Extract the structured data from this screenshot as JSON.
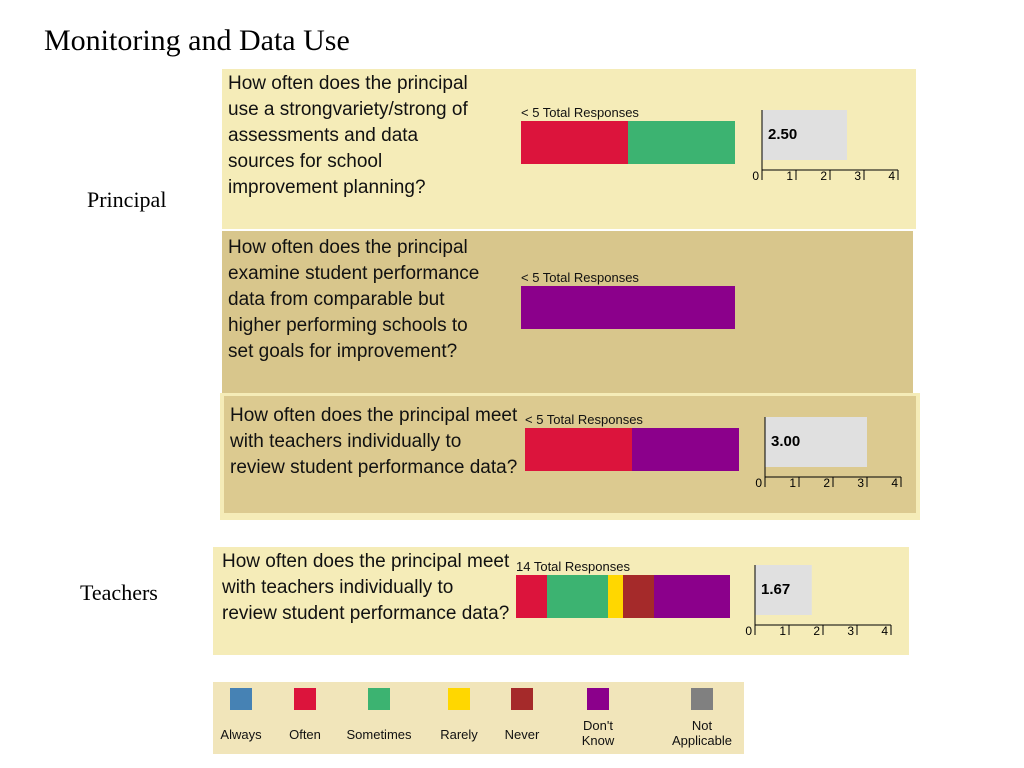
{
  "page": {
    "title": "Monitoring and Data Use"
  },
  "groups": {
    "principal": "Principal",
    "teachers": "Teachers"
  },
  "colors": {
    "Always": "#4682b4",
    "Often": "#dc143c",
    "Sometimes": "#3cb371",
    "Rarely": "#ffd700",
    "Never": "#a52a2a",
    "Don't Know": "#8b008b",
    "Not Applicable": "#808080"
  },
  "chart_data": [
    {
      "type": "bar",
      "group": "Principal",
      "question": "How often does the principal use a strongvariety/strong of assessments and data sources for school improvement planning?",
      "responses_label": "< 5 Total Responses",
      "series": [
        {
          "name": "Often",
          "value": 50
        },
        {
          "name": "Sometimes",
          "value": 50
        }
      ],
      "mean": 2.5,
      "mean_label": "2.50",
      "xlim": [
        0,
        4
      ],
      "ticks": [
        "0",
        "1",
        "2",
        "3",
        "4"
      ]
    },
    {
      "type": "bar",
      "group": "Principal",
      "question": "How often does the principal examine student performance data from comparable but higher performing schools to set goals for improvement?",
      "responses_label": "< 5 Total Responses",
      "series": [
        {
          "name": "Don't Know",
          "value": 100
        }
      ]
    },
    {
      "type": "bar",
      "group": "Principal",
      "question": "How often does the principal meet with teachers individually to review student performance data?",
      "responses_label": "< 5 Total Responses",
      "series": [
        {
          "name": "Often",
          "value": 50
        },
        {
          "name": "Don't Know",
          "value": 50
        }
      ],
      "mean": 3.0,
      "mean_label": "3.00",
      "xlim": [
        0,
        4
      ],
      "ticks": [
        "0",
        "1",
        "2",
        "3",
        "4"
      ]
    },
    {
      "type": "bar",
      "group": "Teachers",
      "question": "How often does the principal meet with teachers individually to review student performance data?",
      "responses_label": "14 Total Responses",
      "series": [
        {
          "name": "Often",
          "value": 14.3
        },
        {
          "name": "Sometimes",
          "value": 28.6
        },
        {
          "name": "Rarely",
          "value": 7.1
        },
        {
          "name": "Never",
          "value": 14.3
        },
        {
          "name": "Don't Know",
          "value": 35.7
        }
      ],
      "mean": 1.67,
      "mean_label": "1.67",
      "xlim": [
        0,
        4
      ],
      "ticks": [
        "0",
        "1",
        "2",
        "3",
        "4"
      ]
    }
  ],
  "legend": [
    {
      "label": "Always",
      "color": "#4682b4"
    },
    {
      "label": "Often",
      "color": "#dc143c"
    },
    {
      "label": "Sometimes",
      "color": "#3cb371"
    },
    {
      "label": "Rarely",
      "color": "#ffd700"
    },
    {
      "label": "Never",
      "color": "#a52a2a"
    },
    {
      "label": "Don't\nKnow",
      "color": "#8b008b"
    },
    {
      "label": "Not\nApplicable",
      "color": "#808080"
    }
  ]
}
